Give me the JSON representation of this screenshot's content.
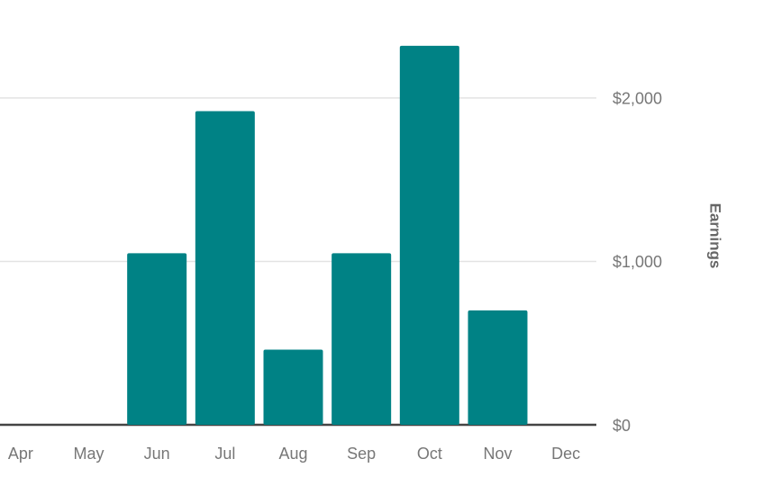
{
  "chart_data": {
    "type": "bar",
    "y_axis_label": "Earnings",
    "categories": [
      "Apr",
      "May",
      "Jun",
      "Jul",
      "Aug",
      "Sep",
      "Oct",
      "Nov",
      "Dec"
    ],
    "values": [
      0,
      0,
      1050,
      1920,
      460,
      1050,
      2320,
      700,
      0
    ],
    "color": "#008285",
    "ylim": [
      0,
      2600
    ],
    "yticks": [
      {
        "value": 0,
        "label": "$0"
      },
      {
        "value": 1000,
        "label": "$1,000"
      },
      {
        "value": 2000,
        "label": "$2,000"
      }
    ],
    "grid": true
  }
}
